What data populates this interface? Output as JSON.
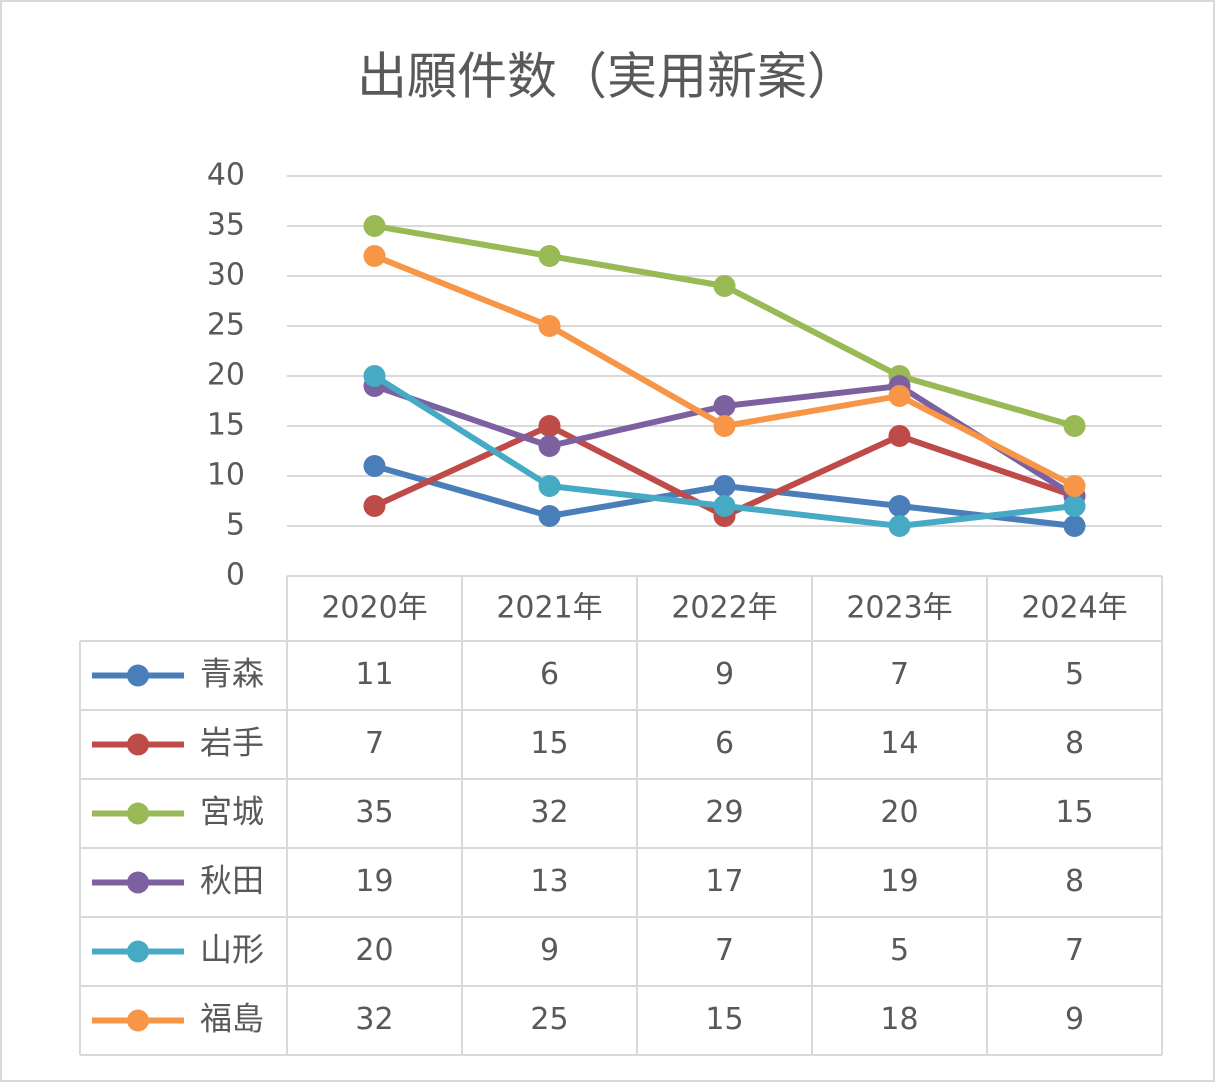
{
  "chart_data": {
    "type": "line",
    "title": "出願件数（実用新案）",
    "categories": [
      "2020年",
      "2021年",
      "2022年",
      "2023年",
      "2024年"
    ],
    "ylim": [
      0,
      40
    ],
    "yticks": [
      0,
      5,
      10,
      15,
      20,
      25,
      30,
      35,
      40
    ],
    "grid": true,
    "legend": "table",
    "series": [
      {
        "name": "青森",
        "color": "#4a7ebb",
        "values": [
          11,
          6,
          9,
          7,
          5
        ]
      },
      {
        "name": "岩手",
        "color": "#be4b48",
        "values": [
          7,
          15,
          6,
          14,
          8
        ]
      },
      {
        "name": "宮城",
        "color": "#98b954",
        "values": [
          35,
          32,
          29,
          20,
          15
        ]
      },
      {
        "name": "秋田",
        "color": "#7d60a0",
        "values": [
          19,
          13,
          17,
          19,
          8
        ]
      },
      {
        "name": "山形",
        "color": "#46aac5",
        "values": [
          20,
          9,
          7,
          5,
          7
        ]
      },
      {
        "name": "福島",
        "color": "#f79646",
        "values": [
          32,
          25,
          15,
          18,
          9
        ]
      }
    ]
  }
}
